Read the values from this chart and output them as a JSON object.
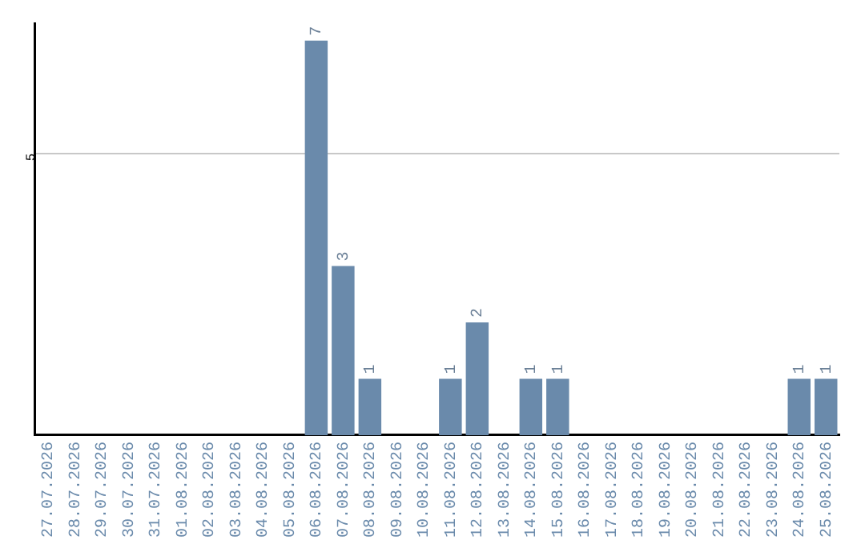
{
  "chart_data": {
    "type": "bar",
    "categories": [
      "27.07.2026",
      "28.07.2026",
      "29.07.2026",
      "30.07.2026",
      "31.07.2026",
      "01.08.2026",
      "02.08.2026",
      "03.08.2026",
      "04.08.2026",
      "05.08.2026",
      "06.08.2026",
      "07.08.2026",
      "08.08.2026",
      "09.08.2026",
      "10.08.2026",
      "11.08.2026",
      "12.08.2026",
      "13.08.2026",
      "14.08.2026",
      "15.08.2026",
      "16.08.2026",
      "17.08.2026",
      "18.08.2026",
      "19.08.2026",
      "20.08.2026",
      "21.08.2026",
      "22.08.2026",
      "23.08.2026",
      "24.08.2026",
      "25.08.2026"
    ],
    "values": [
      0,
      0,
      0,
      0,
      0,
      0,
      0,
      0,
      0,
      0,
      7,
      3,
      1,
      0,
      0,
      1,
      2,
      0,
      1,
      1,
      0,
      0,
      0,
      0,
      0,
      0,
      0,
      0,
      1,
      1
    ],
    "value_labels": [
      null,
      null,
      null,
      null,
      null,
      null,
      null,
      null,
      null,
      null,
      "7",
      "3",
      "1",
      null,
      null,
      "1",
      "2",
      null,
      "1",
      "1",
      null,
      null,
      null,
      null,
      null,
      null,
      null,
      null,
      "1",
      "1"
    ],
    "color": "#6a8aab",
    "ylim": [
      0,
      7.3
    ],
    "yticks": [
      5
    ],
    "grid": "y",
    "legend": false
  }
}
